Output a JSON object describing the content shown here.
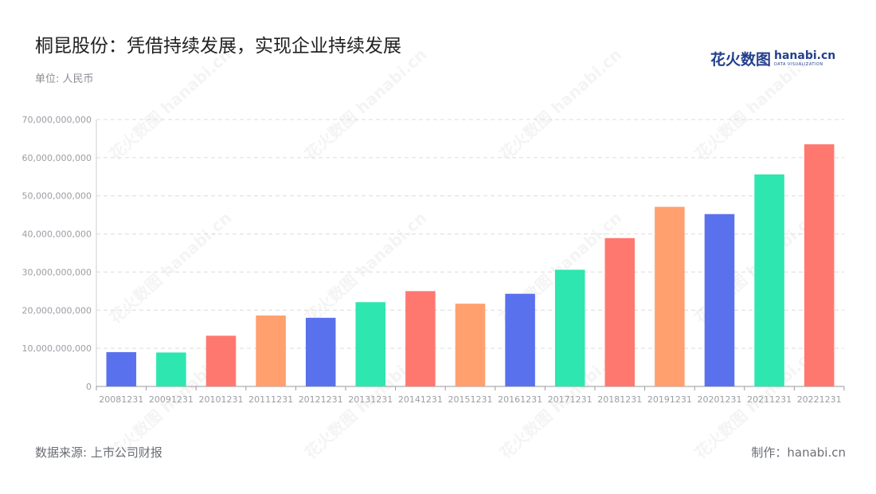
{
  "header": {
    "title": "桐昆股份：凭借持续发展，实现企业持续发展",
    "unit": "单位: 人民币"
  },
  "logo": {
    "cn": "花火数图",
    "en": "hanabi.cn",
    "sub": "DATA VISUALIZATION"
  },
  "footer": {
    "source": "数据来源: 上市公司财报",
    "credit": "制作：hanabi.cn"
  },
  "watermark_text": "花火数图 hanabi.cn",
  "chart_data": {
    "type": "bar",
    "title": "",
    "xlabel": "",
    "ylabel": "",
    "ylim": [
      0,
      70000000000
    ],
    "yticks": [
      0,
      10000000000,
      20000000000,
      30000000000,
      40000000000,
      50000000000,
      60000000000,
      70000000000
    ],
    "ytick_labels": [
      "0",
      "10,000,000,000",
      "20,000,000,000",
      "30,000,000,000",
      "40,000,000,000",
      "50,000,000,000",
      "60,000,000,000",
      "70,000,000,000"
    ],
    "grid": true,
    "categories": [
      "20081231",
      "20091231",
      "20101231",
      "20111231",
      "20121231",
      "20131231",
      "20141231",
      "20151231",
      "20161231",
      "20171231",
      "20181231",
      "20191231",
      "20201231",
      "20211231",
      "20221231"
    ],
    "values": [
      9000000000,
      8900000000,
      13300000000,
      18600000000,
      18000000000,
      22100000000,
      25000000000,
      21700000000,
      24300000000,
      30600000000,
      38900000000,
      47100000000,
      45200000000,
      55600000000,
      63500000000
    ],
    "colors": [
      "#5a71ee",
      "#2ee6b0",
      "#ff7870",
      "#ffa06e",
      "#5a71ee",
      "#2ee6b0",
      "#ff7870",
      "#ffa06e",
      "#5a71ee",
      "#2ee6b0",
      "#ff7870",
      "#ffa06e",
      "#5a71ee",
      "#2ee6b0",
      "#ff7870"
    ]
  }
}
